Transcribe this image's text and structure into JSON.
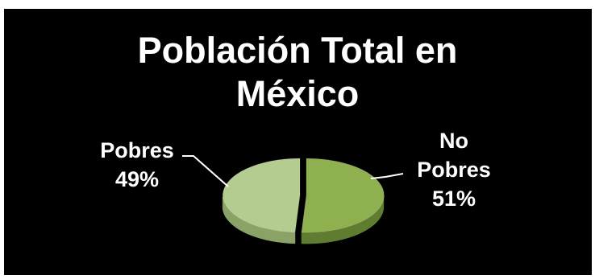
{
  "chart_data": {
    "type": "pie",
    "style": "3d",
    "title_lines": [
      "Población Total en",
      "México"
    ],
    "slices": [
      {
        "name": "Pobres",
        "value": 49,
        "label_lines": [
          "Pobres",
          "49%"
        ],
        "color_top": "#b5cc90",
        "color_side": "#8aa266",
        "exploded": false
      },
      {
        "name": "No Pobres",
        "value": 51,
        "label_lines": [
          "No",
          "Pobres",
          "51%"
        ],
        "color_top": "#8fb04f",
        "color_side": "#5f7d30",
        "exploded": true
      }
    ],
    "background": "#000000",
    "legend": "none"
  }
}
